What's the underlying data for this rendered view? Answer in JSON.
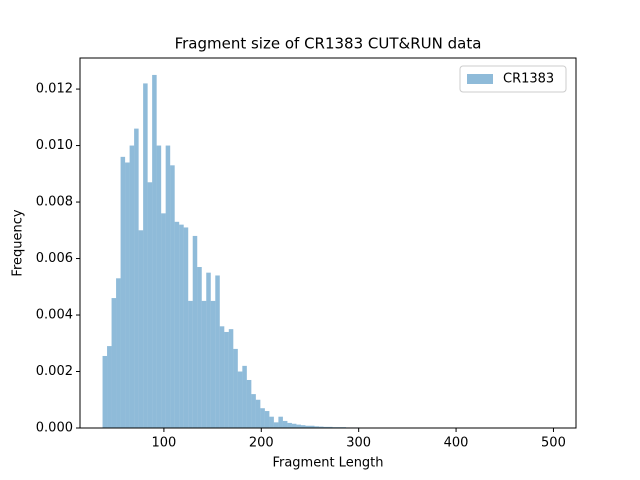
{
  "chart_data": {
    "type": "histogram",
    "title": "Fragment size of CR1383 CUT&RUN data",
    "xlabel": "Fragment Length",
    "ylabel": "Frequency",
    "series_name": "CR1383",
    "color": "#1f77b4",
    "alpha": 0.5,
    "legend": "upper right",
    "bins": [
      37,
      41.63,
      46.26,
      50.89,
      55.52,
      60.15,
      64.78,
      69.41,
      74.04,
      78.67,
      83.3,
      87.93,
      92.56,
      97.19,
      101.82,
      106.45,
      111.08,
      115.71,
      120.34,
      124.97,
      129.6,
      134.23,
      138.86,
      143.49,
      148.12,
      152.75,
      157.38,
      162.01,
      166.64,
      171.27,
      175.9,
      180.53,
      185.16,
      189.79,
      194.42,
      199.05,
      203.68,
      208.31,
      212.94,
      217.57,
      222.2,
      226.83,
      231.46,
      236.09,
      240.72,
      245.35,
      249.98,
      254.61,
      259.24,
      263.87,
      268.5,
      273.13,
      277.76,
      282.39,
      287.02,
      291.65,
      296.28,
      300.91,
      305.54,
      310.17,
      314.8,
      319.43,
      324.06,
      328.69,
      333.32,
      337.95,
      342.58,
      347.21,
      351.84,
      356.47,
      361.1,
      365.73,
      370.36,
      374.99,
      379.62,
      384.25,
      388.88,
      393.51,
      398.14,
      402.77,
      407.4,
      412.03,
      416.66,
      421.29,
      425.92,
      430.55,
      435.18,
      439.81,
      444.44,
      449.07,
      453.7,
      458.33,
      462.96,
      467.59,
      472.22,
      476.85,
      481.48,
      486.11,
      490.74,
      495.37,
      500
    ],
    "values": [
      0.00255,
      0.0029,
      0.0046,
      0.0053,
      0.0096,
      0.0094,
      0.01,
      0.0106,
      0.007,
      0.0122,
      0.0087,
      0.0125,
      0.01,
      0.0076,
      0.01,
      0.0093,
      0.0073,
      0.0072,
      0.0071,
      0.0045,
      0.0068,
      0.0057,
      0.0045,
      0.0055,
      0.0045,
      0.0054,
      0.0036,
      0.0034,
      0.0035,
      0.0028,
      0.002,
      0.0022,
      0.0017,
      0.0012,
      0.001,
      0.0007,
      0.0006,
      0.0004,
      0.0002,
      0.0004,
      0.00025,
      0.00018,
      0.00015,
      0.00012,
      0.0001,
      8e-05,
      8e-05,
      6e-05,
      5e-05,
      4e-05,
      4e-05,
      3e-05,
      3e-05,
      3e-05,
      2e-05,
      2e-05,
      2e-05,
      1e-05,
      1e-05,
      1e-05,
      0,
      0,
      0,
      0,
      0,
      0,
      0,
      0,
      0,
      0,
      0,
      0,
      0,
      0,
      0,
      0,
      0,
      0,
      0,
      0,
      0,
      0,
      0,
      0,
      0,
      0,
      0,
      0,
      0,
      0,
      0,
      0,
      0,
      0,
      0,
      0,
      0,
      0,
      0,
      0
    ],
    "xlim": [
      13.85,
      523.15
    ],
    "ylim": [
      0,
      0.0131
    ],
    "xticks": [
      100,
      200,
      300,
      400,
      500
    ],
    "yticks": [
      {
        "value": 0,
        "label": "0.000"
      },
      {
        "value": 0.002,
        "label": "0.002"
      },
      {
        "value": 0.004,
        "label": "0.004"
      },
      {
        "value": 0.006,
        "label": "0.006"
      },
      {
        "value": 0.008,
        "label": "0.008"
      },
      {
        "value": 0.01,
        "label": "0.010"
      },
      {
        "value": 0.012,
        "label": "0.012"
      }
    ]
  }
}
